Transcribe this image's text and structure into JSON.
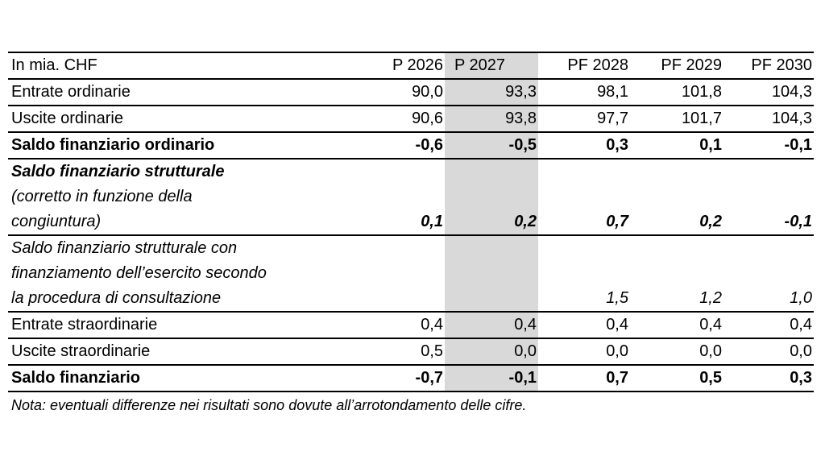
{
  "table": {
    "header": [
      "In mia. CHF",
      "P 2026",
      "P 2027",
      "PF 2028",
      "PF 2029",
      "PF 2030"
    ],
    "rows": [
      {
        "label": "Entrate ordinarie",
        "values": [
          "90,0",
          "93,3",
          "98,1",
          "101,8",
          "104,3"
        ]
      },
      {
        "label": "Uscite ordinarie",
        "values": [
          "90,6",
          "93,8",
          "97,7",
          "101,7",
          "104,3"
        ]
      },
      {
        "label": "Saldo finanziario ordinario",
        "values": [
          "-0,6",
          "-0,5",
          "0,3",
          "0,1",
          "-0,1"
        ]
      },
      {
        "label_lines": [
          "Saldo finanziario strutturale",
          "(corretto in funzione della",
          "congiuntura)"
        ],
        "values": [
          "0,1",
          "0,2",
          "0,7",
          "0,2",
          "-0,1"
        ]
      },
      {
        "label_lines": [
          "Saldo finanziario strutturale con",
          "finanziamento dell’esercito secondo",
          "la procedura di consultazione"
        ],
        "values": [
          "",
          "",
          "1,5",
          "1,2",
          "1,0"
        ]
      },
      {
        "label": "Entrate straordinarie",
        "values": [
          "0,4",
          "0,4",
          "0,4",
          "0,4",
          "0,4"
        ]
      },
      {
        "label": "Uscite straordinarie",
        "values": [
          "0,5",
          "0,0",
          "0,0",
          "0,0",
          "0,0"
        ]
      },
      {
        "label": "Saldo finanziario",
        "values": [
          "-0,7",
          "-0,1",
          "0,7",
          "0,5",
          "0,3"
        ]
      }
    ]
  },
  "note": "Nota: eventuali differenze nei risultati sono dovute all’arrotondamento delle cifre.",
  "colors": {
    "highlight_column": "#d9d9d9",
    "rules": "#000000"
  }
}
